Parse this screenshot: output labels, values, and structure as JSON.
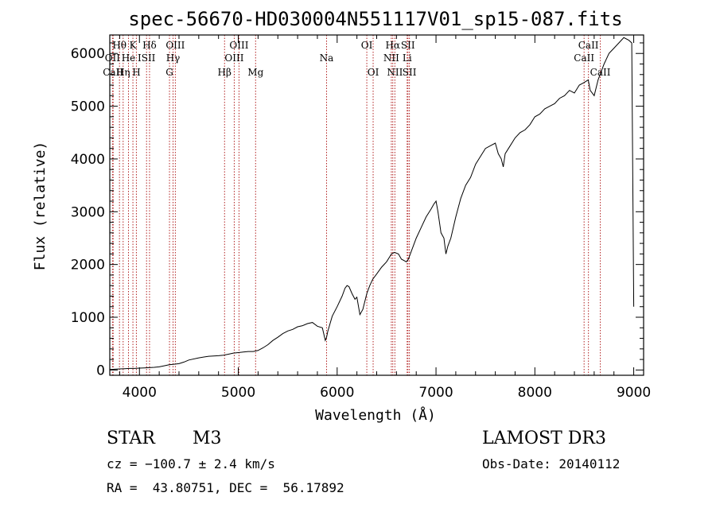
{
  "chart_data": {
    "type": "line",
    "title": "spec-56670-HD030004N551117V01_sp15-087.fits",
    "xlabel": "Wavelength (Å)",
    "ylabel": "Flux (relative)",
    "xlim": [
      3700,
      9100
    ],
    "ylim": [
      -100,
      6350
    ],
    "xticks": [
      4000,
      5000,
      6000,
      7000,
      8000,
      9000
    ],
    "yticks": [
      0,
      1000,
      2000,
      3000,
      4000,
      5000,
      6000
    ],
    "series": [
      {
        "name": "spectrum",
        "x": [
          3700,
          3750,
          3800,
          3850,
          3900,
          3950,
          4000,
          4050,
          4100,
          4150,
          4200,
          4250,
          4300,
          4350,
          4400,
          4450,
          4500,
          4600,
          4700,
          4800,
          4850,
          4900,
          4950,
          5000,
          5050,
          5100,
          5150,
          5200,
          5250,
          5300,
          5350,
          5400,
          5450,
          5500,
          5550,
          5600,
          5650,
          5700,
          5750,
          5800,
          5850,
          5880,
          5893,
          5905,
          5950,
          6000,
          6050,
          6080,
          6100,
          6120,
          6150,
          6180,
          6200,
          6230,
          6260,
          6300,
          6330,
          6360,
          6400,
          6450,
          6500,
          6550,
          6580,
          6620,
          6650,
          6700,
          6720,
          6750,
          6800,
          6850,
          6900,
          6950,
          6980,
          7000,
          7020,
          7050,
          7080,
          7100,
          7120,
          7150,
          7200,
          7250,
          7300,
          7350,
          7400,
          7450,
          7500,
          7550,
          7600,
          7630,
          7660,
          7680,
          7700,
          7750,
          7800,
          7850,
          7900,
          7950,
          8000,
          8050,
          8100,
          8150,
          8200,
          8250,
          8300,
          8350,
          8400,
          8450,
          8500,
          8540,
          8560,
          8600,
          8640,
          8660,
          8700,
          8750,
          8800,
          8850,
          8900,
          8950,
          8980,
          9000
        ],
        "y": [
          10,
          15,
          20,
          25,
          30,
          30,
          35,
          40,
          45,
          50,
          60,
          80,
          100,
          110,
          120,
          150,
          190,
          230,
          260,
          270,
          280,
          300,
          320,
          330,
          340,
          350,
          350,
          370,
          420,
          480,
          560,
          620,
          690,
          740,
          770,
          820,
          840,
          880,
          900,
          830,
          800,
          560,
          620,
          730,
          1020,
          1200,
          1400,
          1550,
          1600,
          1580,
          1450,
          1340,
          1380,
          1050,
          1150,
          1450,
          1600,
          1720,
          1820,
          1950,
          2050,
          2200,
          2230,
          2200,
          2100,
          2050,
          2100,
          2250,
          2500,
          2700,
          2900,
          3050,
          3150,
          3200,
          3000,
          2600,
          2500,
          2200,
          2350,
          2500,
          2900,
          3250,
          3500,
          3650,
          3900,
          4050,
          4200,
          4250,
          4300,
          4100,
          4000,
          3850,
          4100,
          4250,
          4400,
          4500,
          4550,
          4650,
          4800,
          4850,
          4950,
          5000,
          5050,
          5150,
          5200,
          5300,
          5250,
          5400,
          5450,
          5500,
          5300,
          5200,
          5500,
          5600,
          5800,
          6000,
          6100,
          6200,
          6300,
          6250,
          6200,
          1200
        ]
      }
    ],
    "spectral_lines": [
      {
        "label": "Hθ",
        "wavelength": 3798,
        "row": 1
      },
      {
        "label": "OII",
        "wavelength": 3727,
        "row": 2
      },
      {
        "label": "CaII",
        "wavelength": 3734,
        "row": 3
      },
      {
        "label": "He",
        "wavelength": 3889,
        "row": 2
      },
      {
        "label": "Hη",
        "wavelength": 3835,
        "row": 3
      },
      {
        "label": "K",
        "wavelength": 3934,
        "row": 1
      },
      {
        "label": "H",
        "wavelength": 3969,
        "row": 3
      },
      {
        "label": "ISII",
        "wavelength": 4072,
        "row": 2
      },
      {
        "label": "Hδ",
        "wavelength": 4102,
        "row": 1
      },
      {
        "label": "OIII",
        "wavelength": 4363,
        "row": 1
      },
      {
        "label": "Hγ",
        "wavelength": 4340,
        "row": 2
      },
      {
        "label": "G",
        "wavelength": 4304,
        "row": 3
      },
      {
        "label": "Hβ",
        "wavelength": 4861,
        "row": 3
      },
      {
        "label": "OIII",
        "wavelength": 5007,
        "row": 1
      },
      {
        "label": "OIII",
        "wavelength": 4959,
        "row": 2
      },
      {
        "label": "Mg",
        "wavelength": 5175,
        "row": 3
      },
      {
        "label": "Na",
        "wavelength": 5893,
        "row": 2
      },
      {
        "label": "OI",
        "wavelength": 6300,
        "row": 1
      },
      {
        "label": "OI",
        "wavelength": 6364,
        "row": 3
      },
      {
        "label": "Hα",
        "wavelength": 6563,
        "row": 1
      },
      {
        "label": "SII",
        "wavelength": 6716,
        "row": 1
      },
      {
        "label": "NII",
        "wavelength": 6548,
        "row": 2
      },
      {
        "label": "Li",
        "wavelength": 6708,
        "row": 2
      },
      {
        "label": "NII",
        "wavelength": 6584,
        "row": 3
      },
      {
        "label": "SII",
        "wavelength": 6731,
        "row": 3
      },
      {
        "label": "CaII",
        "wavelength": 8542,
        "row": 1
      },
      {
        "label": "CaII",
        "wavelength": 8498,
        "row": 2
      },
      {
        "label": "CaII",
        "wavelength": 8662,
        "row": 3
      }
    ],
    "line_color": "#000000",
    "marker_color": "#b22222"
  },
  "info": {
    "object_class": "STAR",
    "subclass": "M3",
    "survey": "LAMOST DR3",
    "cz": "cz = −100.7 ± 2.4 km/s",
    "obs_date": "Obs-Date: 20140112",
    "coords": "RA =  43.80751, DEC =  56.17892"
  }
}
